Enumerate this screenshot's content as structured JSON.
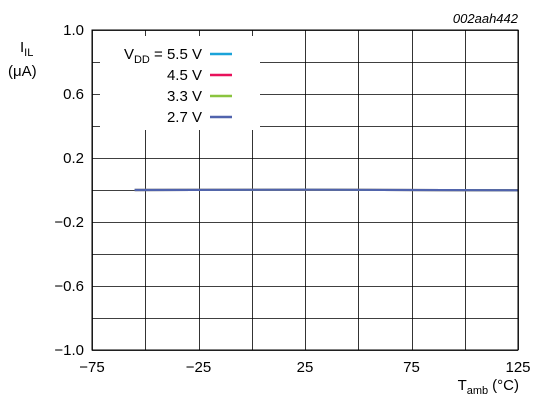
{
  "chart_data": {
    "type": "line",
    "figure_id": "002aah442",
    "ylabel": {
      "main": "I",
      "sub": "IL",
      "unit": "(μA)"
    },
    "xlabel": {
      "main": "T",
      "sub": "amb",
      "unit": "(°C)"
    },
    "xlim": [
      -75,
      125
    ],
    "ylim": [
      -1.0,
      1.0
    ],
    "x_ticks": [
      -75,
      -25,
      25,
      75,
      125
    ],
    "x_tick_labels": [
      "−75",
      "−25",
      "25",
      "75",
      "125"
    ],
    "y_ticks": [
      1.0,
      0.6,
      0.2,
      -0.2,
      -0.6,
      -1.0
    ],
    "y_tick_labels": [
      "1.0",
      "0.6",
      "0.2",
      "−0.2",
      "−0.6",
      "−1.0"
    ],
    "grid_x_step": 25,
    "grid_y_step": 0.2,
    "legend": {
      "placement": "top-left",
      "prefix_main": "V",
      "prefix_sub": "DD",
      "prefix_eq": " = "
    },
    "series": [
      {
        "name": "5.5 V",
        "color": "#1aa3d9",
        "x": [
          -55,
          25,
          125
        ],
        "y": [
          0.0,
          0.002,
          -0.002
        ]
      },
      {
        "name": "4.5 V",
        "color": "#e8115b",
        "x": [
          -55,
          25,
          125
        ],
        "y": [
          0.0,
          0.002,
          -0.002
        ]
      },
      {
        "name": "3.3 V",
        "color": "#8ac43f",
        "x": [
          -55,
          25,
          125
        ],
        "y": [
          0.0,
          0.002,
          -0.002
        ]
      },
      {
        "name": "2.7 V",
        "color": "#5063ad",
        "x": [
          -55,
          25,
          125
        ],
        "y": [
          0.0,
          0.002,
          -0.002
        ]
      }
    ]
  }
}
